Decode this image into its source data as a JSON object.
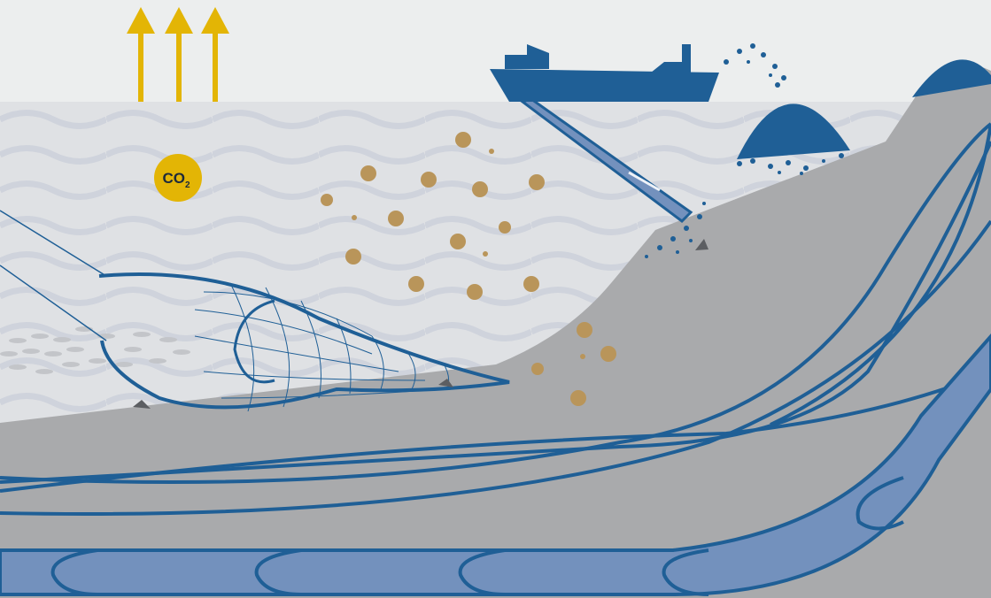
{
  "co2_label": {
    "text": "CO",
    "subscript": "2"
  }
}
